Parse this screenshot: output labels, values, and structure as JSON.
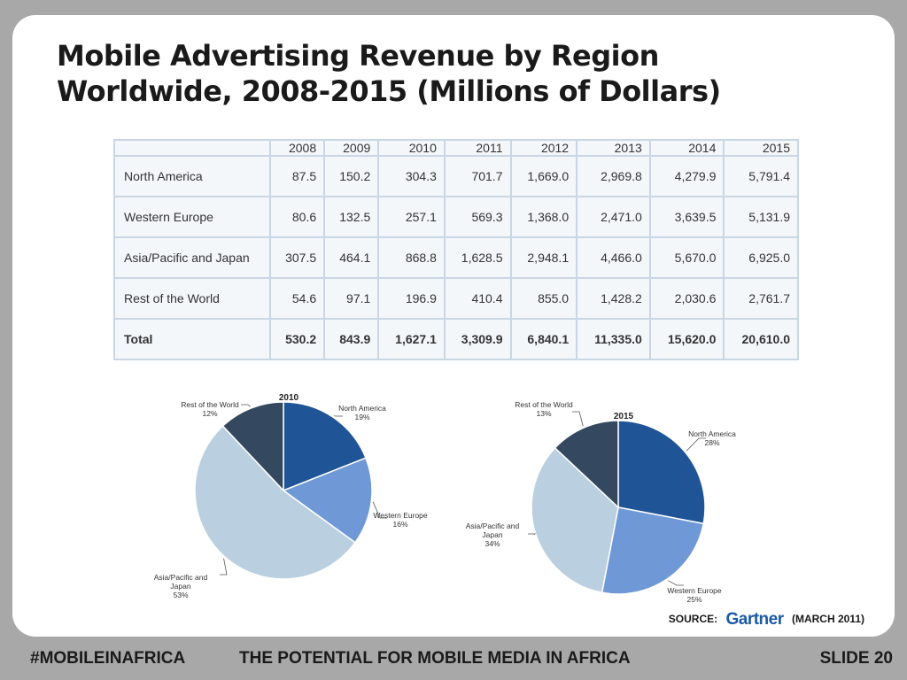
{
  "slide": {
    "title_line1": "Mobile Advertising Revenue by Region",
    "title_line2": "Worldwide, 2008-2015 (Millions of Dollars)"
  },
  "source": {
    "label": "SOURCE:",
    "logo_text": "Gartner",
    "date": "(MARCH 2011)"
  },
  "footer": {
    "hashtag": "#MOBILEINAFRICA",
    "tagline": "THE POTENTIAL FOR MOBILE MEDIA IN AFRICA",
    "slide_number": "SLIDE 20"
  },
  "chart_data": [
    {
      "type": "table",
      "columns": [
        "",
        "2008",
        "2009",
        "2010",
        "2011",
        "2012",
        "2013",
        "2014",
        "2015"
      ],
      "rows": [
        [
          "North America",
          "87.5",
          "150.2",
          "304.3",
          "701.7",
          "1,669.0",
          "2,969.8",
          "4,279.9",
          "5,791.4"
        ],
        [
          "Western Europe",
          "80.6",
          "132.5",
          "257.1",
          "569.3",
          "1,368.0",
          "2,471.0",
          "3,639.5",
          "5,131.9"
        ],
        [
          "Asia/Pacific and Japan",
          "307.5",
          "464.1",
          "868.8",
          "1,628.5",
          "2,948.1",
          "4,466.0",
          "5,670.0",
          "6,925.0"
        ],
        [
          "Rest of the World",
          "54.6",
          "97.1",
          "196.9",
          "410.4",
          "855.0",
          "1,428.2",
          "2,030.6",
          "2,761.7"
        ],
        [
          "Total",
          "530.2",
          "843.9",
          "1,627.1",
          "3,309.9",
          "6,840.1",
          "11,335.0",
          "15,620.0",
          "20,610.0"
        ]
      ]
    },
    {
      "type": "pie",
      "title": "2010",
      "slices": [
        {
          "name": "North America",
          "value": 19,
          "label": "19%",
          "color": "#1f5597"
        },
        {
          "name": "Western Europe",
          "value": 16,
          "label": "16%",
          "color": "#6f99d6"
        },
        {
          "name": "Asia/Pacific and Japan",
          "value": 53,
          "label": "53%",
          "color": "#bacfdf"
        },
        {
          "name": "Rest of the World",
          "value": 12,
          "label": "12%",
          "color": "#34495f"
        }
      ]
    },
    {
      "type": "pie",
      "title": "2015",
      "slices": [
        {
          "name": "North America",
          "value": 28,
          "label": "28%",
          "color": "#1f5597"
        },
        {
          "name": "Western Europe",
          "value": 25,
          "label": "25%",
          "color": "#6f99d6"
        },
        {
          "name": "Asia/Pacific and Japan",
          "value": 34,
          "label": "34%",
          "color": "#bacfdf"
        },
        {
          "name": "Rest of the World",
          "value": 13,
          "label": "13%",
          "color": "#34495f"
        }
      ]
    }
  ]
}
